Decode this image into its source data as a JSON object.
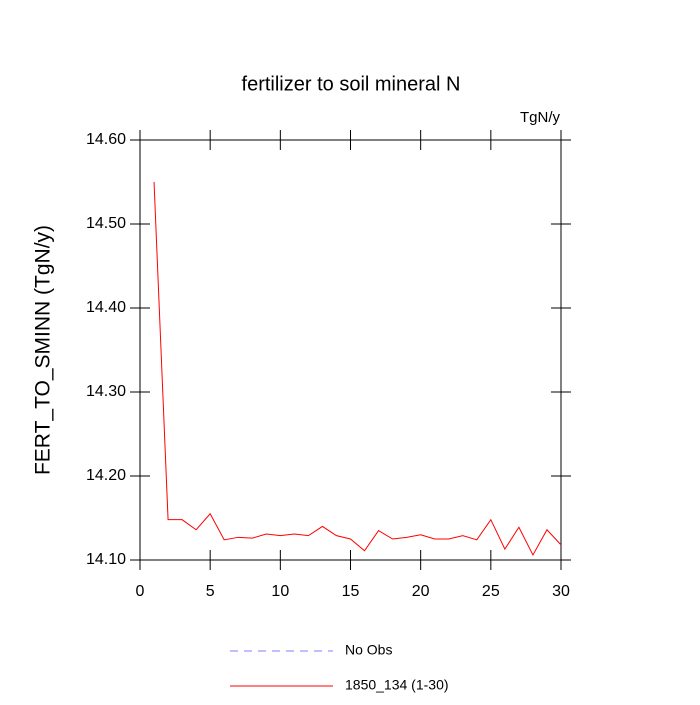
{
  "chart_data": {
    "type": "line",
    "title": "fertilizer to soil mineral N",
    "units_label": "TgN/y",
    "y_label": "FERT_TO_SMINN  (TgN/y)",
    "x": [
      1,
      2,
      3,
      4,
      5,
      6,
      7,
      8,
      9,
      10,
      11,
      12,
      13,
      14,
      15,
      16,
      17,
      18,
      19,
      20,
      21,
      22,
      23,
      24,
      25,
      26,
      27,
      28,
      29,
      30
    ],
    "series": [
      {
        "name": "No Obs",
        "color": "#8080ff",
        "dashed": true,
        "values": [
          null,
          null,
          null,
          null,
          null,
          null,
          null,
          null,
          null,
          null,
          null,
          null,
          null,
          null,
          null,
          null,
          null,
          null,
          null,
          null,
          null,
          null,
          null,
          null,
          null,
          null,
          null,
          null,
          null,
          null
        ]
      },
      {
        "name": "1850_134 (1-30)",
        "color": "#ff0000",
        "dashed": false,
        "values": [
          14.55,
          14.148,
          14.148,
          14.136,
          14.155,
          14.124,
          14.127,
          14.126,
          14.131,
          14.129,
          14.131,
          14.129,
          14.14,
          14.129,
          14.125,
          14.111,
          14.135,
          14.125,
          14.127,
          14.13,
          14.125,
          14.125,
          14.129,
          14.124,
          14.148,
          14.113,
          14.139,
          14.106,
          14.136,
          14.118
        ]
      }
    ],
    "xlim": [
      0,
      30
    ],
    "xticks": [
      0,
      5,
      10,
      15,
      20,
      25,
      30
    ],
    "ylim": [
      14.1,
      14.6
    ],
    "yticks": [
      {
        "value": 14.1,
        "label": "14.10"
      },
      {
        "value": 14.2,
        "label": "14.20"
      },
      {
        "value": 14.3,
        "label": "14.30"
      },
      {
        "value": 14.4,
        "label": "14.40"
      },
      {
        "value": 14.5,
        "label": "14.50"
      },
      {
        "value": 14.6,
        "label": "14.60"
      }
    ],
    "grid": false
  }
}
